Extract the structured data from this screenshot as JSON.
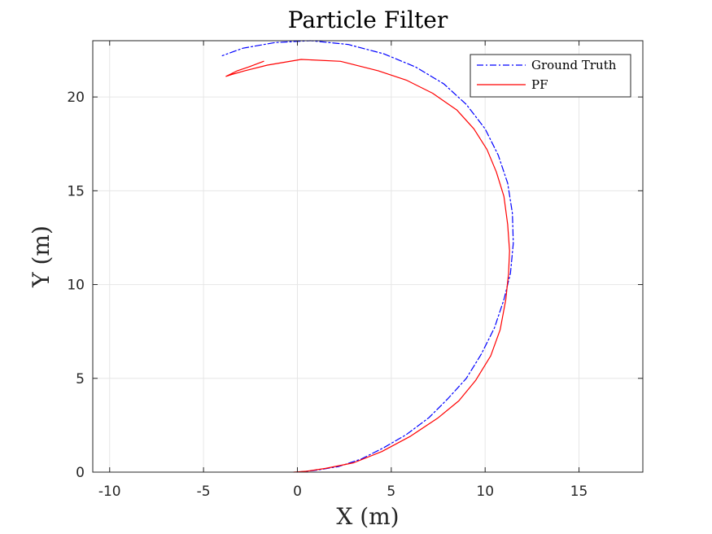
{
  "chart_data": {
    "type": "line",
    "title": "Particle Filter",
    "xlabel": "X (m)",
    "ylabel": "Y (m)",
    "xlim": [
      -10.9,
      18.4
    ],
    "ylim": [
      0,
      23
    ],
    "xticks": [
      -10,
      -5,
      0,
      5,
      10,
      15
    ],
    "yticks": [
      0,
      5,
      10,
      15,
      20
    ],
    "xtick_labels": [
      "-10",
      "-5",
      "0",
      "5",
      "10",
      "15"
    ],
    "ytick_labels": [
      "0",
      "5",
      "10",
      "15",
      "20"
    ],
    "grid": true,
    "legend_position": "top-right",
    "series": [
      {
        "name": "Ground Truth",
        "color": "#0000ff",
        "line_style": "dash-dot",
        "x": [
          0.0,
          1.0,
          2.2,
          3.4,
          4.6,
          5.8,
          7.0,
          8.0,
          9.0,
          9.8,
          10.5,
          11.0,
          11.35,
          11.5,
          11.45,
          11.2,
          10.7,
          10.0,
          9.0,
          7.8,
          6.3,
          4.6,
          2.7,
          0.7,
          -1.2,
          -2.9,
          -4.0
        ],
        "y": [
          0.0,
          0.1,
          0.3,
          0.7,
          1.3,
          2.0,
          2.9,
          3.9,
          5.0,
          6.3,
          7.7,
          9.2,
          10.6,
          12.2,
          13.8,
          15.4,
          16.9,
          18.3,
          19.6,
          20.7,
          21.6,
          22.3,
          22.8,
          23.0,
          22.9,
          22.6,
          22.2
        ]
      },
      {
        "name": "PF",
        "color": "#ff0000",
        "line_style": "solid",
        "x": [
          -0.2,
          0.5,
          1.5,
          3.0,
          4.5,
          6.0,
          7.5,
          8.6,
          9.5,
          10.3,
          10.8,
          11.1,
          11.25,
          11.3,
          11.2,
          11.0,
          10.6,
          10.1,
          9.4,
          8.5,
          7.2,
          5.8,
          4.3,
          2.3,
          0.2,
          -1.6,
          -2.8,
          -3.5,
          -3.8,
          -3.2,
          -2.6,
          -1.8
        ],
        "y": [
          0.0,
          0.05,
          0.2,
          0.5,
          1.1,
          1.9,
          2.9,
          3.8,
          4.9,
          6.2,
          7.6,
          9.2,
          10.6,
          11.8,
          13.2,
          14.7,
          16.0,
          17.2,
          18.3,
          19.3,
          20.2,
          20.9,
          21.4,
          21.9,
          22.0,
          21.7,
          21.4,
          21.2,
          21.1,
          21.4,
          21.6,
          21.9
        ]
      }
    ]
  }
}
